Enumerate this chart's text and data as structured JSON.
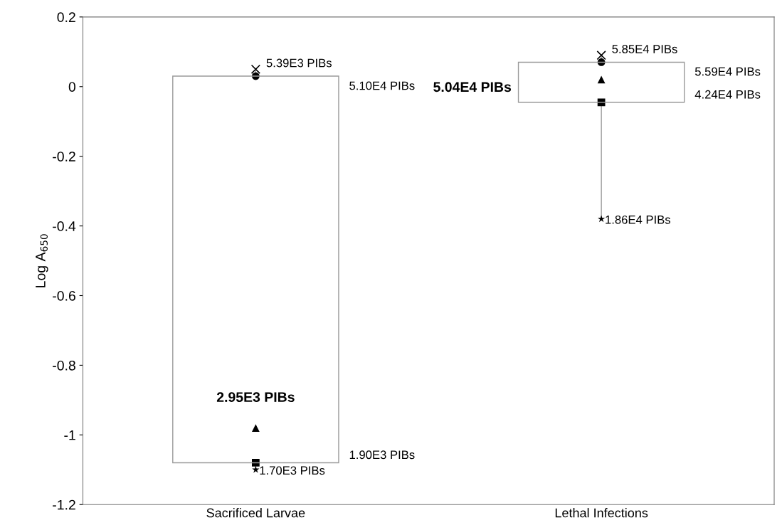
{
  "chart_data": {
    "type": "candlestick",
    "ylabel": "Log A$_{650}$",
    "categories": [
      "Sacrificed Larvae",
      "Lethal Infections"
    ],
    "ohlc": [
      [
        0.03,
        0.05,
        -1.1,
        -1.08
      ],
      [
        0.07,
        0.09,
        -0.38,
        -0.045
      ]
    ],
    "color": "#9a9a9a",
    "ylim": [
      -1.2,
      0.2
    ],
    "yticks": [
      0.2,
      0,
      {
        "value": -0.2,
        "label": "-0.2"
      },
      {
        "value": -0.4,
        "label": "-0.4"
      },
      {
        "value": -0.6,
        "label": "-0.6"
      },
      {
        "value": -0.8,
        "label": "-0.8"
      },
      {
        "value": -1,
        "label": "-1"
      },
      {
        "value": -1.2,
        "label": "-1.2"
      }
    ],
    "grid": false,
    "legend": false,
    "annotations": [
      "5.10E4 PIBs",
      "2.95E3 PIBs",
      "1.90E3 PIBs",
      "5.59E4 PIBs",
      "5.04E4 PIBs",
      "4.24E4 PIBs"
    ],
    "series": [
      {
        "type": "scatter",
        "marker": "cross",
        "color": "#000000",
        "x": [
          "Sacrificed Larvae",
          "Lethal Infections"
        ],
        "values": [
          0.05,
          0.09
        ],
        "value_labels": [
          "5.39E3 PIBs",
          "5.85E4 PIBs"
        ]
      },
      {
        "type": "scatter",
        "marker": "circle",
        "color": "#000000",
        "x": [
          "Sacrificed Larvae",
          "Lethal Infections"
        ],
        "values": [
          0.03,
          0.07
        ]
      },
      {
        "type": "scatter",
        "marker": "triangle",
        "color": "#000000",
        "x": [
          "Sacrificed Larvae",
          "Lethal Infections"
        ],
        "values": [
          -0.98,
          0.02
        ]
      },
      {
        "type": "scatter",
        "marker": "square",
        "color": "#000000",
        "x": [
          "Sacrificed Larvae",
          "Lethal Infections"
        ],
        "values": [
          -1.08,
          -0.045
        ]
      },
      {
        "type": "scatter",
        "marker": "star",
        "color": "#000000",
        "x": [
          "Sacrificed Larvae",
          "Lethal Infections"
        ],
        "values": [
          -1.1,
          -0.38
        ],
        "value_labels": [
          "1.70E3 PIBs",
          "1.86E4 PIBs"
        ]
      }
    ]
  }
}
